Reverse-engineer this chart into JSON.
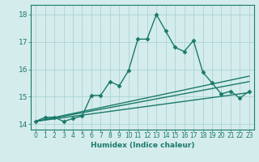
{
  "xlabel": "Humidex (Indice chaleur)",
  "ylabel": "",
  "background_color": "#d5ecec",
  "grid_color": "#aad4d4",
  "line_color": "#1a7a6a",
  "xlim": [
    -0.5,
    23.5
  ],
  "ylim": [
    13.8,
    18.35
  ],
  "yticks": [
    14,
    15,
    16,
    17,
    18
  ],
  "xticks": [
    0,
    1,
    2,
    3,
    4,
    5,
    6,
    7,
    8,
    9,
    10,
    11,
    12,
    13,
    14,
    15,
    16,
    17,
    18,
    19,
    20,
    21,
    22,
    23
  ],
  "series": [
    {
      "x": [
        0,
        1,
        2,
        3,
        4,
        5,
        6,
        7,
        8,
        9,
        10,
        11,
        12,
        13,
        14,
        15,
        16,
        17,
        18,
        19,
        20,
        21,
        22,
        23
      ],
      "y": [
        14.1,
        14.25,
        14.25,
        14.1,
        14.2,
        14.3,
        15.05,
        15.05,
        15.55,
        15.4,
        15.95,
        17.1,
        17.1,
        18.0,
        17.4,
        16.8,
        16.65,
        17.05,
        15.9,
        15.5,
        15.1,
        15.2,
        14.95,
        15.2
      ],
      "marker": "D",
      "markersize": 2.5,
      "linewidth": 1.0
    },
    {
      "x": [
        0,
        23
      ],
      "y": [
        14.1,
        15.55
      ],
      "marker": null,
      "linewidth": 1.0
    },
    {
      "x": [
        0,
        23
      ],
      "y": [
        14.1,
        15.15
      ],
      "marker": null,
      "linewidth": 1.0
    },
    {
      "x": [
        0,
        23
      ],
      "y": [
        14.1,
        15.75
      ],
      "marker": null,
      "linewidth": 1.0
    }
  ]
}
